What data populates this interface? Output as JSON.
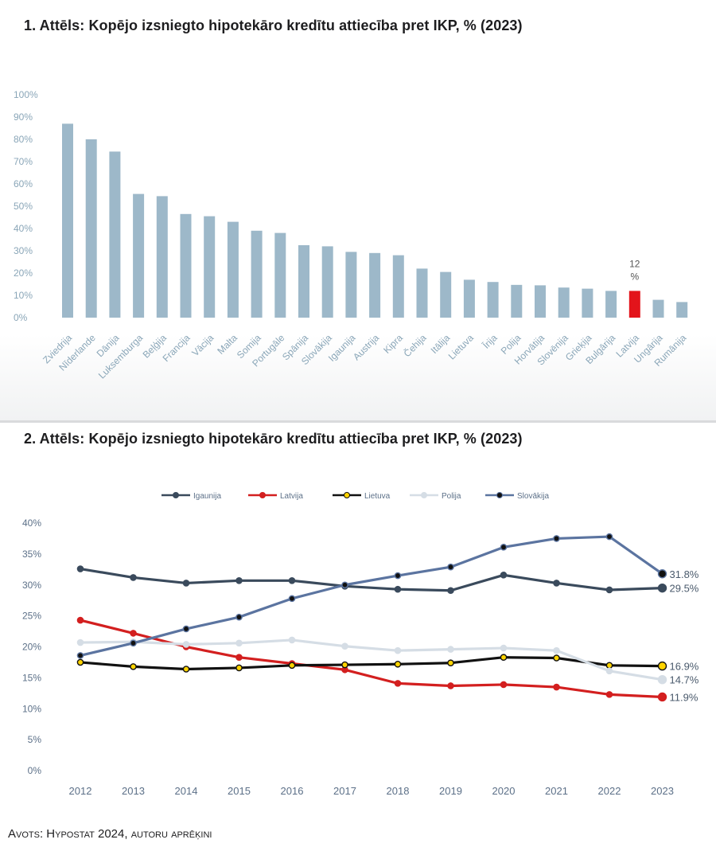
{
  "source": "Avots: Hypostat 2024, autoru aprēķini",
  "chart_data": [
    {
      "type": "bar",
      "title": "1. Attēls: Kopējo izsniegto hipotekāro kredītu attiecība pret IKP, % (2023)",
      "xlabel": "",
      "ylabel": "",
      "ylim": [
        0,
        100
      ],
      "yticks": [
        "0%",
        "10%",
        "20%",
        "30%",
        "40%",
        "50%",
        "60%",
        "70%",
        "80%",
        "90%",
        "100%"
      ],
      "categories": [
        "Zviedrija",
        "Nīderlande",
        "Dānija",
        "Luksemburga",
        "Beļģija",
        "Francija",
        "Vācija",
        "Malta",
        "Somija",
        "Portugāle",
        "Spānija",
        "Slovākija",
        "Igaunija",
        "Austrija",
        "Kipra",
        "Čehija",
        "Itālija",
        "Lietuva",
        "Īrija",
        "Polija",
        "Horvātija",
        "Slovēnija",
        "Grieķija",
        "Bulgārija",
        "Latvija",
        "Ungārija",
        "Rumānija"
      ],
      "values": [
        87,
        80,
        74.5,
        55.5,
        54.5,
        46.5,
        45.5,
        43,
        39,
        38,
        32.5,
        32,
        29.5,
        29,
        28,
        22,
        20.5,
        17,
        16,
        14.7,
        14.5,
        13.5,
        13,
        12,
        12,
        8,
        7
      ],
      "highlight": {
        "category": "Latvija",
        "color": "#e3141b",
        "label": "12 %"
      },
      "bar_color": "#9db8c9",
      "axis_label_color": "#8aa6b8"
    },
    {
      "type": "line",
      "title": "2. Attēls: Kopējo izsniegto hipotekāro kredītu attiecība pret IKP, % (2023)",
      "xlabel": "",
      "ylabel": "",
      "ylim": [
        0,
        40
      ],
      "yticks": [
        "0%",
        "5%",
        "10%",
        "15%",
        "20%",
        "25%",
        "30%",
        "35%",
        "40%"
      ],
      "legend_position": "top-center",
      "x": [
        "2012",
        "2013",
        "2014",
        "2015",
        "2016",
        "2017",
        "2018",
        "2019",
        "2020",
        "2021",
        "2022",
        "2023"
      ],
      "series": [
        {
          "name": "Igaunija",
          "color": "#3a4a5c",
          "marker": "#3a4a5c",
          "end_label": "29.5%",
          "values": [
            32.6,
            31.2,
            30.3,
            30.7,
            30.7,
            29.8,
            29.3,
            29.1,
            31.6,
            30.3,
            29.2,
            29.5
          ]
        },
        {
          "name": "Latvija",
          "color": "#d31f1f",
          "marker": "#d31f1f",
          "end_label": "11.9%",
          "values": [
            24.3,
            22.2,
            20.0,
            18.3,
            17.3,
            16.3,
            14.1,
            13.7,
            13.9,
            13.5,
            12.3,
            11.9
          ]
        },
        {
          "name": "Lietuva",
          "color": "#111111",
          "marker": "#ffd400",
          "end_label": "16.9%",
          "values": [
            17.5,
            16.8,
            16.4,
            16.6,
            17.0,
            17.1,
            17.2,
            17.4,
            18.3,
            18.2,
            17.0,
            16.9
          ]
        },
        {
          "name": "Polija",
          "color": "#d5dde5",
          "marker": "#d5dde5",
          "end_label": "14.7%",
          "values": [
            20.7,
            20.8,
            20.4,
            20.6,
            21.1,
            20.1,
            19.4,
            19.6,
            19.8,
            19.4,
            16.1,
            14.7
          ]
        },
        {
          "name": "Slovākija",
          "color": "#5b74a0",
          "marker": "#111111",
          "end_label": "31.8%",
          "values": [
            18.6,
            20.6,
            22.9,
            24.8,
            27.8,
            30.0,
            31.5,
            32.9,
            36.1,
            37.5,
            37.8,
            31.8
          ]
        }
      ],
      "axis_label_color": "#5c7088"
    }
  ]
}
